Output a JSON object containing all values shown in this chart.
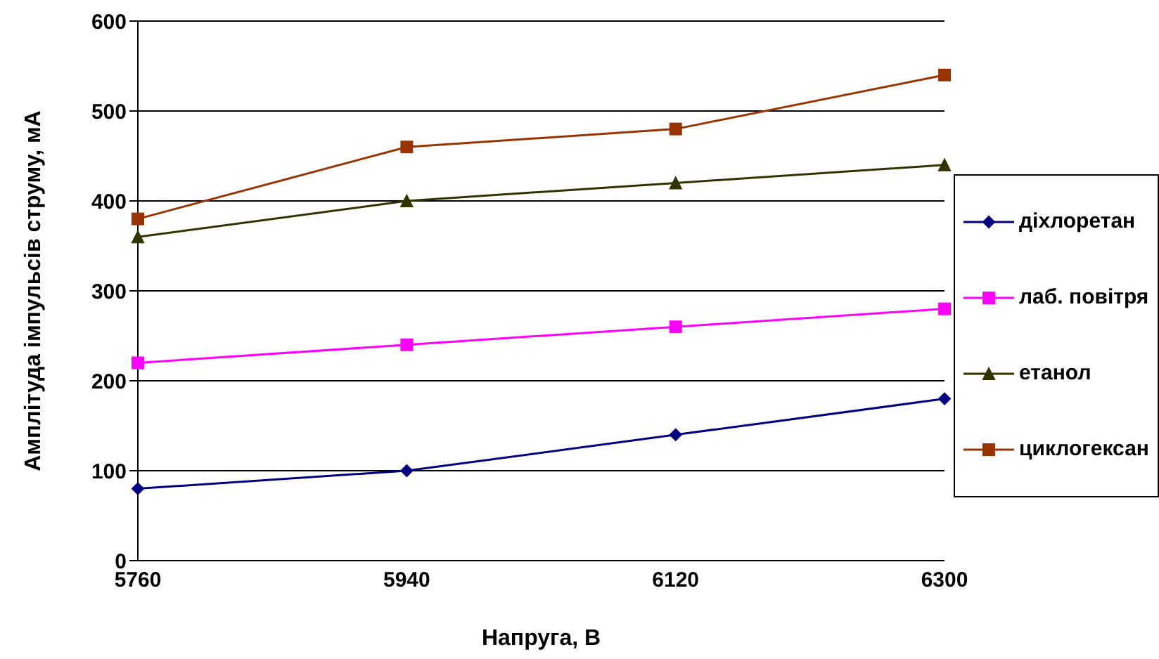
{
  "chart_data": {
    "type": "line",
    "xlabel": "Напруга, В",
    "ylabel": "Амплітуда імпульсів струму, мА",
    "categories": [
      "5760",
      "5940",
      "6120",
      "6300"
    ],
    "series": [
      {
        "name": "діхлоретан",
        "color": "#000080",
        "marker": "diamond",
        "values": [
          80,
          100,
          140,
          180
        ]
      },
      {
        "name": "лаб. повітря",
        "color": "#ff00ff",
        "marker": "square",
        "values": [
          220,
          240,
          260,
          280
        ]
      },
      {
        "name": "етанол",
        "color": "#333300",
        "marker": "triangle",
        "values": [
          360,
          400,
          420,
          440
        ]
      },
      {
        "name": "циклогексан",
        "color": "#993300",
        "marker": "square",
        "values": [
          380,
          460,
          480,
          540
        ]
      }
    ],
    "ylim": [
      0,
      600
    ],
    "yticks": [
      0,
      100,
      200,
      300,
      400,
      500,
      600
    ],
    "grid": "y",
    "legend": "right"
  }
}
